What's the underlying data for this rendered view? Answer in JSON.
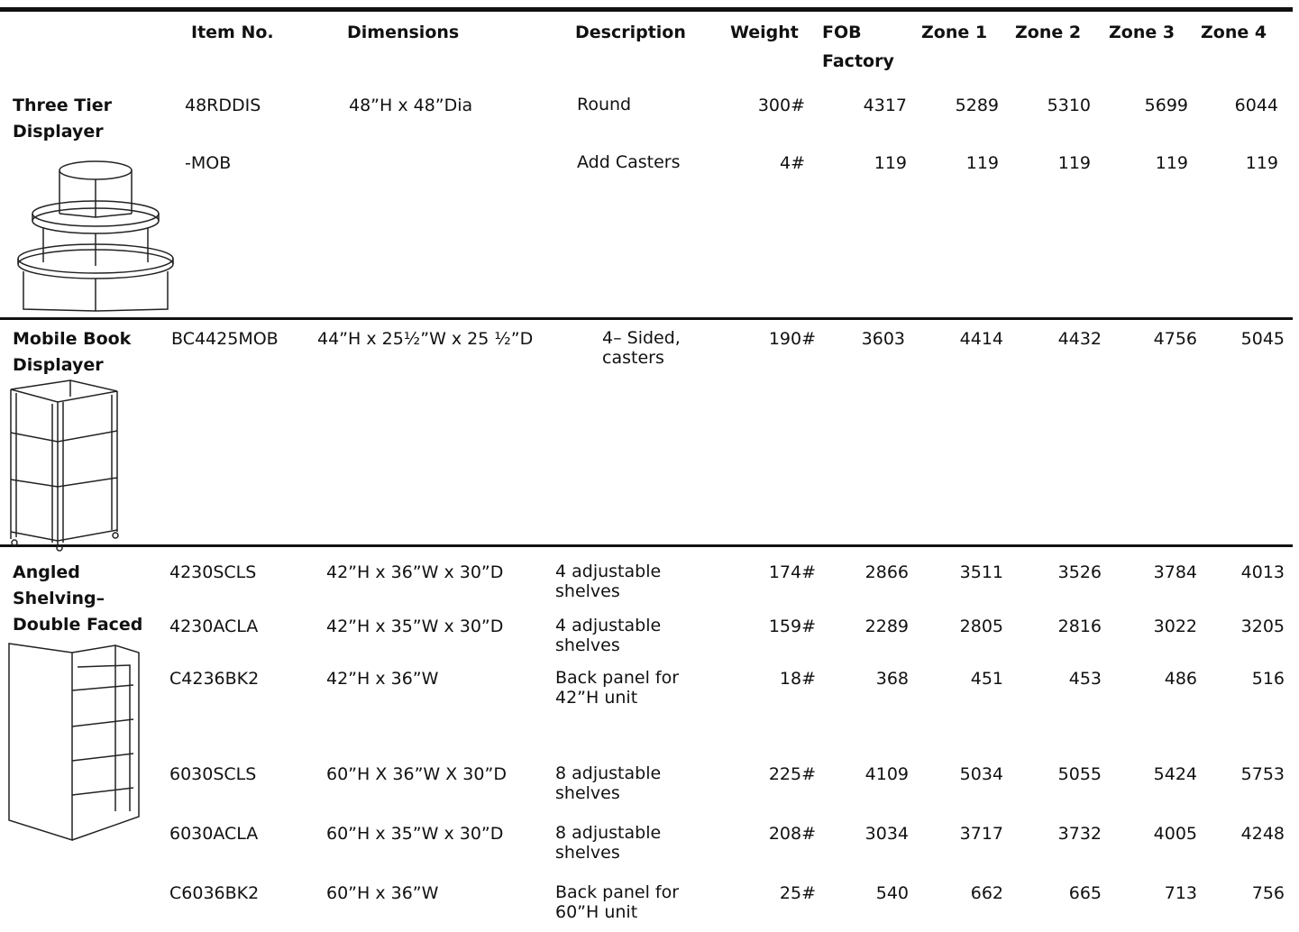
{
  "header": {
    "columns": [
      "Item No.",
      "Dimensions",
      "Description",
      "Weight",
      "FOB Factory",
      "Zone 1",
      "Zone 2",
      "Zone 3",
      "Zone 4"
    ]
  },
  "groups": [
    {
      "name": [
        "Three Tier",
        "Displayer"
      ],
      "rows": [
        {
          "item": "48RDDIS",
          "dimensions": "48”H x 48”Dia",
          "description": "Round",
          "weight": "300#",
          "prices": [
            4317,
            5289,
            5310,
            5699,
            6044
          ]
        },
        {
          "item": "-MOB",
          "description": "Add Casters",
          "weight": "4#",
          "prices": [
            119,
            119,
            119,
            119,
            119
          ]
        }
      ]
    },
    {
      "name": [
        "Mobile Book",
        "Displayer"
      ],
      "rows": [
        {
          "item": "BC4425MOB",
          "dimensions": "44”H x 25½”W x 25 ½”D",
          "description": "4– Sided, casters",
          "weight": "190#",
          "prices": [
            3603,
            4414,
            4432,
            4756,
            5045
          ]
        }
      ]
    },
    {
      "name": [
        "Angled",
        "Shelving–",
        "Double Faced"
      ],
      "rows": [
        {
          "item": "4230SCLS",
          "dimensions": "42”H x 36”W x 30”D",
          "description": "4 adjustable shelves",
          "weight": "174#",
          "prices": [
            2866,
            3511,
            3526,
            3784,
            4013
          ]
        },
        {
          "item": "4230ACLA",
          "dimensions": "42”H x 35”W x 30”D",
          "description": "4 adjustable shelves",
          "weight": "159#",
          "prices": [
            2289,
            2805,
            2816,
            3022,
            3205
          ]
        },
        {
          "item": "C4236BK2",
          "dimensions": "42”H x 36”W",
          "description": "Back panel for 42”H unit",
          "weight": "18#",
          "prices": [
            368,
            451,
            453,
            486,
            516
          ]
        },
        {
          "item": "6030SCLS",
          "dimensions": "60”H X 36”W X 30”D",
          "description": "8 adjustable shelves",
          "weight": "225#",
          "prices": [
            4109,
            5034,
            5055,
            5424,
            5753
          ]
        },
        {
          "item": "6030ACLA",
          "dimensions": "60”H x 35”W x 30”D",
          "description": "8 adjustable shelves",
          "weight": "208#",
          "prices": [
            3034,
            3717,
            3732,
            4005,
            4248
          ]
        },
        {
          "item": "C6036BK2",
          "dimensions": "60”H x 36”W",
          "description": "Back panel for 60”H unit",
          "weight": "25#",
          "prices": [
            540,
            662,
            665,
            713,
            756
          ]
        }
      ]
    }
  ]
}
